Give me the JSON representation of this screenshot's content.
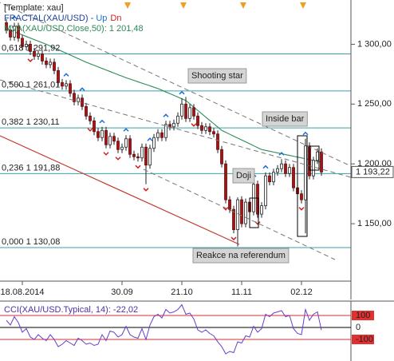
{
  "chart_data": {
    "type": "candlestick",
    "template_label": "[Template: xau]",
    "fractal_label": "FRACTAL(XAU/USD) - ",
    "fractal_up_label": "Up",
    "fractal_down_label": "Dn",
    "ma_label": "MVA(XAU/USD.Close,50): 1 201,48",
    "last_price_label": "1 193,22",
    "ylim": [
      1102,
      1337
    ],
    "yticks": [
      {
        "value": 1300,
        "label": "1 300,00"
      },
      {
        "value": 1250,
        "label": "1 250,00"
      },
      {
        "value": 1200,
        "label": "1 200,00"
      },
      {
        "value": 1150,
        "label": "1 150,00"
      }
    ],
    "up_color": "#ffffff",
    "down_color": "#a31515",
    "ma_color": "#2e8b57",
    "fib_color": "#3aa0a8",
    "categories": [
      null,
      null,
      null,
      null,
      "18.08.2014",
      null,
      null,
      null,
      null,
      null,
      null,
      null,
      null,
      null,
      null,
      null,
      null,
      null,
      null,
      null,
      null,
      null,
      null,
      null,
      null,
      null,
      null,
      null,
      null,
      "30.09",
      null,
      null,
      null,
      null,
      null,
      null,
      null,
      null,
      null,
      null,
      null,
      null,
      null,
      null,
      "21.10",
      null,
      null,
      null,
      null,
      null,
      null,
      null,
      null,
      null,
      null,
      null,
      null,
      null,
      null,
      "11.11",
      null,
      null,
      null,
      null,
      null,
      null,
      null,
      null,
      null,
      null,
      null,
      null,
      null,
      null,
      "02.12",
      null,
      null,
      null,
      null,
      null
    ],
    "candles": [
      [
        1318,
        1321,
        1309,
        1312
      ],
      [
        1312,
        1316,
        1303,
        1306
      ],
      [
        1306,
        1318,
        1303,
        1315
      ],
      [
        1315,
        1318,
        1302,
        1305
      ],
      [
        1305,
        1308,
        1295,
        1298
      ],
      [
        1298,
        1303,
        1295,
        1300
      ],
      [
        1300,
        1303,
        1291,
        1294
      ],
      [
        1294,
        1297,
        1287,
        1290
      ],
      [
        1290,
        1295,
        1287,
        1292
      ],
      [
        1292,
        1295,
        1283,
        1286
      ],
      [
        1286,
        1289,
        1280,
        1283
      ],
      [
        1283,
        1288,
        1280,
        1285
      ],
      [
        1285,
        1288,
        1275,
        1278
      ],
      [
        1278,
        1281,
        1265,
        1268
      ],
      [
        1268,
        1271,
        1262,
        1265
      ],
      [
        1265,
        1270,
        1262,
        1267
      ],
      [
        1267,
        1270,
        1256,
        1259
      ],
      [
        1259,
        1262,
        1249,
        1252
      ],
      [
        1252,
        1258,
        1249,
        1255
      ],
      [
        1255,
        1258,
        1245,
        1248
      ],
      [
        1248,
        1251,
        1237,
        1240
      ],
      [
        1240,
        1243,
        1233,
        1236
      ],
      [
        1236,
        1239,
        1224,
        1227
      ],
      [
        1227,
        1230,
        1219,
        1222
      ],
      [
        1222,
        1231,
        1219,
        1228
      ],
      [
        1228,
        1231,
        1213,
        1216
      ],
      [
        1216,
        1226,
        1213,
        1223
      ],
      [
        1223,
        1226,
        1216,
        1219
      ],
      [
        1219,
        1222,
        1209,
        1212
      ],
      [
        1212,
        1217,
        1209,
        1214
      ],
      [
        1214,
        1224,
        1211,
        1221
      ],
      [
        1221,
        1224,
        1205,
        1208
      ],
      [
        1208,
        1211,
        1203,
        1206
      ],
      [
        1206,
        1209,
        1202,
        1205
      ],
      [
        1205,
        1217,
        1202,
        1214
      ],
      [
        1214,
        1217,
        1183,
        1199
      ],
      [
        1199,
        1216,
        1196,
        1213
      ],
      [
        1213,
        1225,
        1210,
        1222
      ],
      [
        1222,
        1229,
        1219,
        1226
      ],
      [
        1226,
        1229,
        1219,
        1222
      ],
      [
        1222,
        1236,
        1219,
        1233
      ],
      [
        1233,
        1236,
        1228,
        1231
      ],
      [
        1231,
        1237,
        1228,
        1234
      ],
      [
        1234,
        1243,
        1231,
        1240
      ],
      [
        1240,
        1255,
        1237,
        1250
      ],
      [
        1250,
        1256,
        1235,
        1238
      ],
      [
        1238,
        1250,
        1235,
        1247
      ],
      [
        1247,
        1250,
        1237,
        1240
      ],
      [
        1240,
        1243,
        1229,
        1232
      ],
      [
        1232,
        1235,
        1225,
        1228
      ],
      [
        1228,
        1234,
        1225,
        1231
      ],
      [
        1231,
        1234,
        1224,
        1227
      ],
      [
        1227,
        1230,
        1222,
        1225
      ],
      [
        1225,
        1228,
        1209,
        1212
      ],
      [
        1212,
        1215,
        1197,
        1200
      ],
      [
        1200,
        1203,
        1167,
        1170
      ],
      [
        1170,
        1173,
        1159,
        1162
      ],
      [
        1162,
        1165,
        1142,
        1145
      ],
      [
        1145,
        1172,
        1131,
        1170
      ],
      [
        1170,
        1173,
        1147,
        1150
      ],
      [
        1150,
        1171,
        1147,
        1168
      ],
      [
        1168,
        1171,
        1157,
        1160
      ],
      [
        1160,
        1186,
        1157,
        1183
      ],
      [
        1183,
        1186,
        1155,
        1158
      ],
      [
        1158,
        1168,
        1155,
        1165
      ],
      [
        1165,
        1193,
        1162,
        1190
      ],
      [
        1190,
        1193,
        1182,
        1185
      ],
      [
        1185,
        1196,
        1182,
        1193
      ],
      [
        1193,
        1199,
        1190,
        1196
      ],
      [
        1196,
        1204,
        1193,
        1200
      ],
      [
        1200,
        1203,
        1189,
        1192
      ],
      [
        1192,
        1200,
        1189,
        1197
      ],
      [
        1197,
        1200,
        1177,
        1180
      ],
      [
        1180,
        1183,
        1172,
        1175
      ],
      [
        1175,
        1178,
        1167,
        1170
      ],
      [
        1170,
        1221,
        1142,
        1215
      ],
      [
        1215,
        1218,
        1187,
        1190
      ],
      [
        1190,
        1206,
        1187,
        1203
      ],
      [
        1203,
        1213,
        1200,
        1210
      ],
      [
        1210,
        1213,
        1190,
        1193.22
      ]
    ],
    "ma": [
      1313,
      1311.7,
      1310.4,
      1309.1,
      1307.8,
      1306.5,
      1305.2,
      1303.9,
      1302.6,
      1301.3,
      1300,
      1298.5,
      1297,
      1295.5,
      1294,
      1292.5,
      1291,
      1289.5,
      1288,
      1286.5,
      1285,
      1283.7,
      1282.4,
      1281.1,
      1279.8,
      1278.5,
      1277.2,
      1275.9,
      1274.6,
      1273.3,
      1272,
      1270.9,
      1269.8,
      1268.6,
      1267.5,
      1266.4,
      1265.3,
      1264.1,
      1263,
      1261.6,
      1260.1,
      1258.7,
      1257.3,
      1255.9,
      1254.4,
      1253,
      1250.2,
      1247.4,
      1244.7,
      1241.9,
      1239.1,
      1236.3,
      1233.6,
      1230.8,
      1228,
      1226.4,
      1224.8,
      1223.2,
      1221.6,
      1220,
      1218.4,
      1216.8,
      1215.2,
      1213.6,
      1212,
      1211.3,
      1210.6,
      1209.9,
      1209.2,
      1208.5,
      1207.8,
      1207.1,
      1206.4,
      1205.7,
      1205,
      1204.3,
      1203.6,
      1202.9,
      1202.2,
      1201.48
    ],
    "fractals_up": [
      2,
      15,
      19,
      24,
      30,
      36,
      40,
      44,
      62,
      65,
      69,
      75
    ],
    "fractals_down": [
      6,
      21,
      25,
      28,
      33,
      35,
      47,
      55,
      57,
      63,
      74
    ],
    "fib_levels": [
      {
        "value": 1291.92,
        "label": "0,618 1 291,92"
      },
      {
        "value": 1261.01,
        "label": "0,500 1 261,01"
      },
      {
        "value": 1230.11,
        "label": "0,382 1 230,11"
      },
      {
        "value": 1191.88,
        "label": "0,236 1 191,88"
      },
      {
        "value": 1130.08,
        "label": "0,000 1 130,08"
      }
    ],
    "annotations": [
      "Shooting star",
      "Inside bar",
      "Doji",
      "Reakce na referendum"
    ],
    "cci": {
      "label": "CCI(XAU/USD.Typical, 14): -22,02",
      "color": "#6a3dc8",
      "ylim": [
        -280,
        200
      ],
      "yticks": [
        100,
        0,
        -100
      ],
      "values": [
        60,
        20,
        90,
        40,
        -40,
        -10,
        -80,
        -100,
        -60,
        -90,
        -110,
        -60,
        -100,
        -160,
        -140,
        -110,
        -130,
        -150,
        -90,
        -110,
        -140,
        -130,
        -150,
        -140,
        -60,
        -110,
        -30,
        -40,
        -80,
        -60,
        10,
        -60,
        -80,
        -90,
        -10,
        -100,
        20,
        90,
        110,
        80,
        150,
        120,
        130,
        150,
        190,
        110,
        120,
        70,
        -20,
        -40,
        -20,
        -50,
        -70,
        -120,
        -160,
        -220,
        -200,
        -210,
        -120,
        -130,
        -70,
        -80,
        10,
        -40,
        -10,
        110,
        90,
        120,
        130,
        140,
        90,
        100,
        -10,
        -50,
        -60,
        150,
        60,
        110,
        130,
        -22.02
      ]
    }
  }
}
